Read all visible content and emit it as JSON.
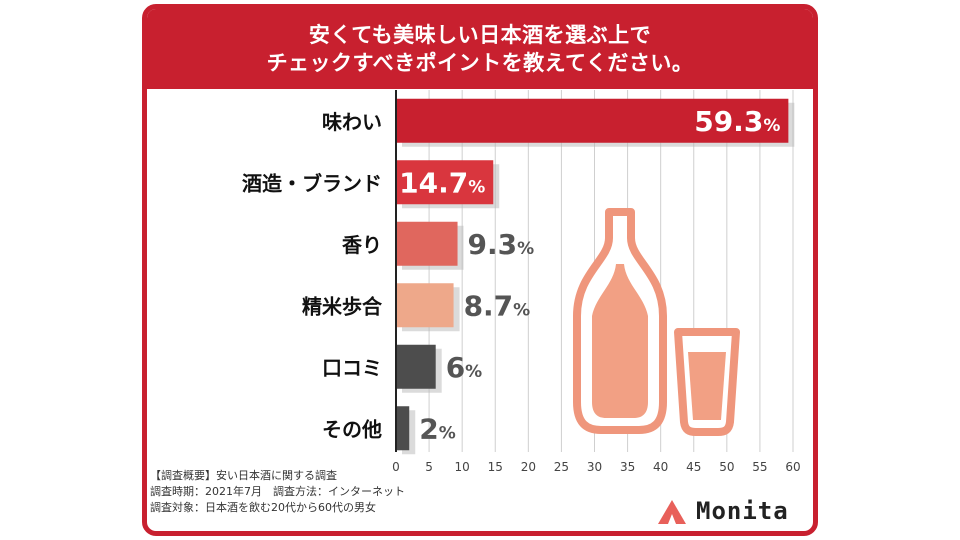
{
  "title": {
    "line1": "安くても美味しい日本酒を選ぶ上で",
    "line2": "チェックすべきポイントを教えてください。"
  },
  "chart_data": {
    "type": "bar",
    "orientation": "horizontal",
    "categories": [
      "味わい",
      "酒造・ブランド",
      "香り",
      "精米歩合",
      "口コミ",
      "その他"
    ],
    "values": [
      59.3,
      14.7,
      9.3,
      8.7,
      6,
      2
    ],
    "value_labels": [
      "59.3",
      "14.7",
      "9.3",
      "8.7",
      "6",
      "2"
    ],
    "unit": "%",
    "bar_colors": [
      "#c8202f",
      "#d9363e",
      "#e0675e",
      "#eea88a",
      "#4d4d4d",
      "#4d4d4d"
    ],
    "xlim": [
      0,
      60
    ],
    "xticks": [
      "0",
      "5",
      "10",
      "15",
      "20",
      "25",
      "30",
      "35",
      "40",
      "45",
      "50",
      "55",
      "60"
    ],
    "grid": true
  },
  "notes": [
    "【調査概要】安い日本酒に関する調査",
    "調査時期：2021年7月　調査方法：インターネット",
    "調査対象：日本酒を飲む20代から60代の男女"
  ],
  "logo": {
    "text": "Monita",
    "mark_color": "#e8605a"
  },
  "colors": {
    "accent": "#c8202f",
    "illustration": "#f2a084"
  }
}
